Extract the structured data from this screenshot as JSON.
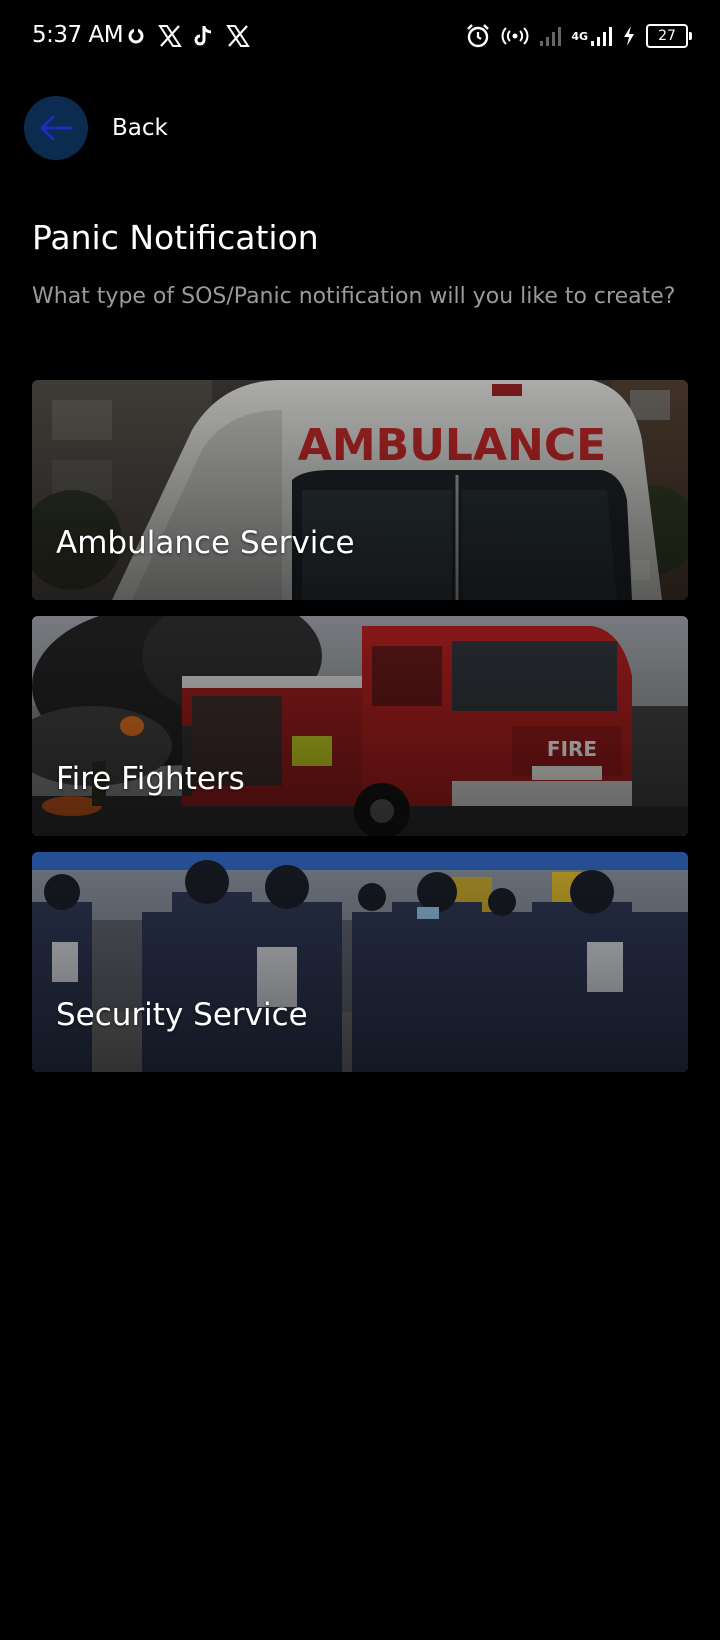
{
  "status_bar": {
    "time": "5:37 AM",
    "battery": "27",
    "network": "4G",
    "icons_left": [
      "sync-icon",
      "x-icon",
      "tiktok-icon",
      "x-icon"
    ],
    "icons_right": [
      "alarm-icon",
      "hotspot-icon",
      "signal-icon",
      "signal-icon",
      "charging-icon",
      "battery-icon"
    ]
  },
  "header": {
    "back_label": "Back"
  },
  "page": {
    "title": "Panic Notification",
    "subtitle": "What type of SOS/Panic notification will you like to create?"
  },
  "cards": [
    {
      "label": "Ambulance Service",
      "image_text": "AMBULANCE",
      "image_icon": "ambulance-photo"
    },
    {
      "label": "Fire Fighters",
      "image_text": "FIRE",
      "image_icon": "fire-truck-photo"
    },
    {
      "label": "Security Service",
      "image_text": "",
      "image_icon": "police-officers-photo"
    }
  ],
  "colors": {
    "background": "#000000",
    "back_button": "#0b2b4f",
    "back_arrow": "#1a2fb8",
    "subtitle": "#9a9a9a"
  }
}
